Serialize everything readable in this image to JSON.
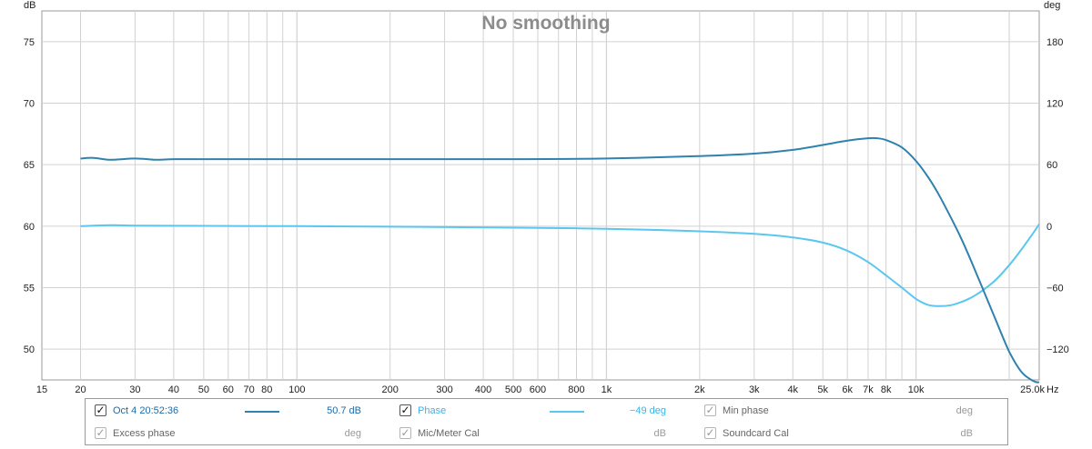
{
  "colors": {
    "spl": "#2f82ad",
    "phase": "#5bc6ef",
    "grid": "#d2d2d2",
    "muted": "#9a9a9a"
  },
  "chart_data": {
    "type": "line",
    "title": "No smoothing",
    "x_scale": "log",
    "xlim": [
      15,
      25000
    ],
    "x_ticks": [
      {
        "v": 15,
        "label": "15"
      },
      {
        "v": 20,
        "label": "20"
      },
      {
        "v": 30,
        "label": "30"
      },
      {
        "v": 40,
        "label": "40"
      },
      {
        "v": 50,
        "label": "50"
      },
      {
        "v": 60,
        "label": "60"
      },
      {
        "v": 70,
        "label": "70"
      },
      {
        "v": 80,
        "label": "80"
      },
      {
        "v": 100,
        "label": "100"
      },
      {
        "v": 200,
        "label": "200"
      },
      {
        "v": 300,
        "label": "300"
      },
      {
        "v": 400,
        "label": "400"
      },
      {
        "v": 500,
        "label": "500"
      },
      {
        "v": 600,
        "label": "600"
      },
      {
        "v": 800,
        "label": "800"
      },
      {
        "v": 1000,
        "label": "1k"
      },
      {
        "v": 2000,
        "label": "2k"
      },
      {
        "v": 3000,
        "label": "3k"
      },
      {
        "v": 4000,
        "label": "4k"
      },
      {
        "v": 5000,
        "label": "5k"
      },
      {
        "v": 6000,
        "label": "6k"
      },
      {
        "v": 7000,
        "label": "7k"
      },
      {
        "v": 8000,
        "label": "8k"
      },
      {
        "v": 10000,
        "label": "10k"
      },
      {
        "v": 25000,
        "label": "25.0k"
      }
    ],
    "x_unit": "Hz",
    "y_left": {
      "unit": "dB",
      "ylim": [
        47.5,
        77.5
      ],
      "ticks": [
        50,
        55,
        60,
        65,
        70,
        75
      ]
    },
    "y_right": {
      "unit": "deg",
      "ylim": [
        -150,
        210
      ],
      "ticks": [
        {
          "v": -120,
          "label": "−120"
        },
        {
          "v": -60,
          "label": "−60"
        },
        {
          "v": 0,
          "label": "0"
        },
        {
          "v": 60,
          "label": "60"
        },
        {
          "v": 120,
          "label": "120"
        },
        {
          "v": 180,
          "label": "180"
        }
      ]
    },
    "grid": true,
    "series": [
      {
        "name": "Oct 4 20:52:36",
        "axis": "left",
        "x": [
          20,
          22,
          25,
          30,
          35,
          40,
          50,
          70,
          100,
          200,
          500,
          1000,
          2000,
          3000,
          4000,
          5000,
          6000,
          7000,
          7500,
          8000,
          9000,
          10000,
          11000,
          12000,
          14000,
          16000,
          18000,
          20000,
          22000,
          24000,
          25000
        ],
        "y": [
          65.5,
          65.55,
          65.4,
          65.5,
          65.4,
          65.45,
          65.45,
          65.45,
          65.45,
          65.45,
          65.45,
          65.5,
          65.7,
          65.9,
          66.2,
          66.6,
          66.95,
          67.15,
          67.15,
          67.0,
          66.4,
          65.3,
          63.9,
          62.3,
          59.0,
          55.6,
          52.5,
          49.8,
          48.1,
          47.4,
          47.3
        ]
      },
      {
        "name": "Phase",
        "axis": "right",
        "x": [
          20,
          25,
          30,
          50,
          100,
          200,
          500,
          1000,
          2000,
          3000,
          4000,
          5000,
          6000,
          7000,
          8000,
          9000,
          10000,
          11000,
          12000,
          13000,
          14000,
          15000,
          16000,
          18000,
          20000,
          22000,
          24000,
          25000
        ],
        "y": [
          0,
          1,
          0.5,
          0.3,
          0,
          -0.5,
          -1.5,
          -2.5,
          -5,
          -7.5,
          -11,
          -16,
          -24,
          -35,
          -48,
          -60,
          -71,
          -77,
          -78,
          -77,
          -74,
          -70,
          -65,
          -53,
          -38,
          -22,
          -6,
          2
        ]
      }
    ]
  },
  "legend": {
    "rows": [
      [
        {
          "checked": true,
          "dim": false,
          "label": "Oct 4 20:52:36",
          "value": "50.7 dB",
          "swatch": "spl",
          "color": "#1f6aa5"
        },
        {
          "checked": true,
          "dim": false,
          "label": "Phase",
          "value": "−49 deg",
          "swatch": "phase",
          "color": "#3bb3e6"
        },
        {
          "checked": true,
          "dim": true,
          "label": "Min phase",
          "value": "deg",
          "swatch": "",
          "color": "#666666"
        }
      ],
      [
        {
          "checked": true,
          "dim": true,
          "label": "Excess phase",
          "value": "deg",
          "swatch": "",
          "color": "#666666"
        },
        {
          "checked": true,
          "dim": true,
          "label": "Mic/Meter Cal",
          "value": "dB",
          "swatch": "",
          "color": "#666666"
        },
        {
          "checked": true,
          "dim": true,
          "label": "Soundcard Cal",
          "value": "dB",
          "swatch": "",
          "color": "#666666"
        }
      ]
    ]
  }
}
